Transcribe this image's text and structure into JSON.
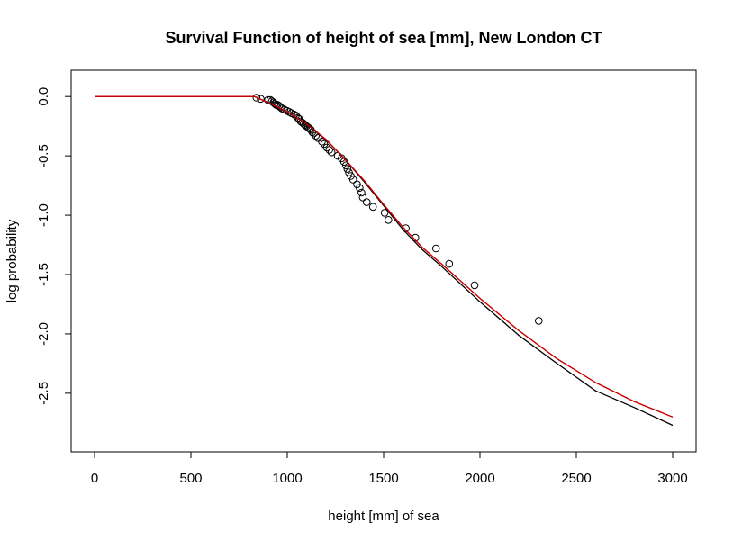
{
  "chart_data": {
    "type": "scatter",
    "title": "Survival Function of height of sea [mm], New London CT",
    "xlabel": "height [mm] of sea",
    "ylabel": "log probability",
    "xlim": [
      0,
      3000
    ],
    "ylim": [
      -2.88,
      0.1
    ],
    "xticks": [
      0,
      500,
      1000,
      1500,
      2000,
      2500,
      3000
    ],
    "xtick_labels": [
      "0",
      "500",
      "1000",
      "1500",
      "2000",
      "2500",
      "3000"
    ],
    "yticks": [
      0.0,
      -0.5,
      -1.0,
      -1.5,
      -2.0,
      -2.5
    ],
    "ytick_labels": [
      "0.0",
      "-0.5",
      "-1.0",
      "-1.5",
      "-2.0",
      "-2.5"
    ],
    "grid": false,
    "legend": "none",
    "colors": {
      "fit_black": "#000000",
      "fit_red": "#cc0000",
      "points": "#000000"
    },
    "points": {
      "x": [
        840,
        862,
        900,
        912,
        920,
        928,
        935,
        942,
        950,
        958,
        965,
        972,
        985,
        998,
        1010,
        1022,
        1035,
        1045,
        1055,
        1062,
        1070,
        1078,
        1085,
        1092,
        1100,
        1108,
        1115,
        1122,
        1130,
        1138,
        1148,
        1160,
        1180,
        1192,
        1205,
        1218,
        1230,
        1262,
        1282,
        1295,
        1305,
        1312,
        1320,
        1330,
        1342,
        1362,
        1375,
        1385,
        1392,
        1412,
        1445,
        1505,
        1525,
        1615,
        1665,
        1772,
        1840,
        1972,
        2305
      ],
      "y": [
        -0.01,
        -0.02,
        -0.03,
        -0.03,
        -0.04,
        -0.05,
        -0.06,
        -0.07,
        -0.07,
        -0.08,
        -0.09,
        -0.1,
        -0.11,
        -0.12,
        -0.13,
        -0.14,
        -0.15,
        -0.16,
        -0.18,
        -0.19,
        -0.21,
        -0.22,
        -0.23,
        -0.24,
        -0.25,
        -0.26,
        -0.27,
        -0.28,
        -0.3,
        -0.31,
        -0.33,
        -0.35,
        -0.38,
        -0.4,
        -0.43,
        -0.45,
        -0.47,
        -0.5,
        -0.52,
        -0.55,
        -0.58,
        -0.61,
        -0.64,
        -0.67,
        -0.7,
        -0.74,
        -0.77,
        -0.81,
        -0.85,
        -0.89,
        -0.93,
        -0.98,
        -1.04,
        -1.11,
        -1.19,
        -1.28,
        -1.41,
        -1.59,
        -1.89
      ]
    },
    "series": [
      {
        "type": "line",
        "x": [
          0,
          830,
          900,
          1000,
          1100,
          1200,
          1300,
          1400,
          1500,
          1600,
          1700,
          1800,
          2000,
          2200,
          2400,
          2600,
          2800,
          3000
        ],
        "y": [
          0.0,
          0.0,
          -0.05,
          -0.13,
          -0.23,
          -0.36,
          -0.53,
          -0.72,
          -0.92,
          -1.12,
          -1.29,
          -1.43,
          -1.73,
          -2.01,
          -2.25,
          -2.48,
          -2.62,
          -2.77
        ]
      },
      {
        "type": "line",
        "x": [
          0,
          830,
          900,
          1000,
          1100,
          1200,
          1300,
          1400,
          1500,
          1600,
          1700,
          1800,
          2000,
          2200,
          2400,
          2600,
          2800,
          3000
        ],
        "y": [
          0.0,
          0.0,
          -0.05,
          -0.13,
          -0.23,
          -0.36,
          -0.53,
          -0.71,
          -0.91,
          -1.1,
          -1.27,
          -1.41,
          -1.7,
          -1.97,
          -2.21,
          -2.41,
          -2.57,
          -2.7
        ]
      }
    ]
  }
}
